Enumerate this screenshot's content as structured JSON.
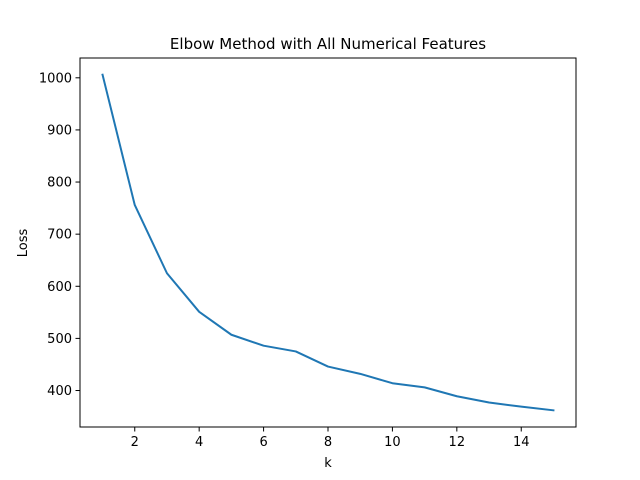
{
  "chart_data": {
    "type": "line",
    "title": "Elbow Method with All Numerical Features",
    "xlabel": "k",
    "ylabel": "Loss",
    "x": [
      1,
      2,
      3,
      4,
      5,
      6,
      7,
      8,
      9,
      10,
      11,
      12,
      13,
      14,
      15
    ],
    "series": [
      {
        "values": [
          1006,
          756,
          625,
          551,
          507,
          486,
          475,
          446,
          432,
          414,
          406,
          389,
          377,
          369,
          362
        ],
        "color": "#1f77b4"
      }
    ],
    "xticks": [
      2,
      4,
      6,
      8,
      10,
      12,
      14
    ],
    "xtick_labels": [
      "2",
      "4",
      "6",
      "8",
      "10",
      "12",
      "14"
    ],
    "yticks": [
      400,
      500,
      600,
      700,
      800,
      900,
      1000
    ],
    "ytick_labels": [
      "400",
      "500",
      "600",
      "700",
      "800",
      "900",
      "1000"
    ],
    "xlim": [
      0.3,
      15.7
    ],
    "ylim": [
      330,
      1038
    ],
    "grid": false,
    "legend": "none"
  }
}
